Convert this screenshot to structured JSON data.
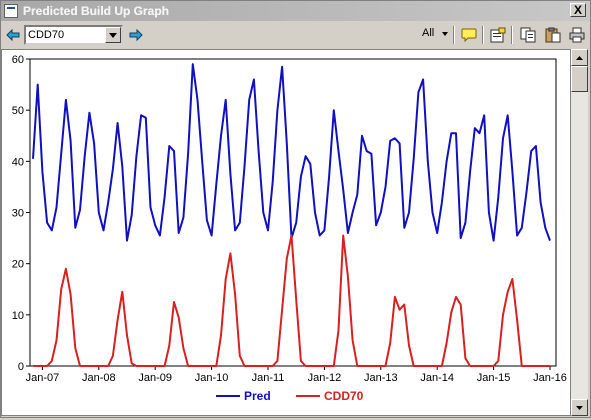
{
  "window": {
    "title": "Predicted Build Up Graph",
    "close_label": "X"
  },
  "toolbar": {
    "series_select": "CDD70",
    "filter_label": "All",
    "icons": [
      "arrow-left-icon",
      "arrow-right-icon",
      "comment-icon",
      "properties-icon",
      "copy-icon",
      "paste-icon",
      "print-icon"
    ]
  },
  "colors": {
    "pred": "#1010c0",
    "cdd70": "#d82020"
  },
  "chart_data": {
    "type": "line",
    "ylim": [
      0,
      60
    ],
    "yticks": [
      "0",
      "10",
      "20",
      "30",
      "40",
      "50",
      "60"
    ],
    "x_tick_labels": [
      "Jan-07",
      "Jan-08",
      "Jan-09",
      "Jan-10",
      "Jan-11",
      "Jan-12",
      "Jan-13",
      "Jan-14",
      "Jan-15",
      "Jan-16"
    ],
    "x_start": "Nov-06",
    "x_end": "Jan-16",
    "series": [
      {
        "name": "Pred",
        "values": [
          40.5,
          55,
          38,
          28,
          26.5,
          31,
          41.5,
          52,
          44,
          27,
          30.5,
          41,
          49.5,
          43.5,
          30,
          26.5,
          32,
          38.5,
          47.5,
          39,
          24.5,
          29.5,
          41,
          49,
          48.5,
          31,
          27.5,
          25.5,
          33,
          43,
          42,
          26,
          29,
          41.5,
          59,
          52,
          40,
          28.5,
          25.5,
          35.5,
          45,
          52,
          37.5,
          26.5,
          28,
          39,
          52,
          56,
          42,
          30,
          26.5,
          36,
          50,
          58.5,
          43.5,
          25,
          28,
          37,
          41,
          39.5,
          30,
          25.5,
          26.5,
          37,
          50,
          42,
          34.5,
          26,
          30,
          33.5,
          45,
          42,
          41.5,
          27.5,
          30,
          35,
          44,
          44.5,
          43.5,
          27,
          30,
          40.5,
          53.5,
          56,
          40,
          30,
          26,
          32,
          40,
          45.5,
          45.5,
          25,
          28,
          38,
          46.5,
          45.5,
          49,
          30,
          24.5,
          33,
          44.5,
          49,
          38,
          25.5,
          27,
          34,
          42,
          43,
          32,
          27,
          24.5
        ]
      },
      {
        "name": "CDD70",
        "values": [
          0,
          0,
          0,
          0,
          1,
          5,
          15,
          19,
          14,
          3.5,
          0,
          0,
          0,
          0,
          0,
          0,
          0,
          2,
          9,
          14.5,
          6,
          0.5,
          0,
          0,
          0,
          0,
          0,
          0,
          0,
          4,
          12.5,
          9.5,
          3.5,
          0,
          0,
          0,
          0,
          0,
          0,
          0,
          6,
          17,
          22,
          14,
          2,
          0,
          0,
          0,
          0,
          0,
          0,
          0,
          1,
          11,
          21,
          25.5,
          13,
          1,
          0,
          0,
          0,
          0,
          0,
          0,
          0,
          7,
          25.5,
          17.5,
          5,
          0,
          0,
          0,
          0,
          0,
          0,
          0,
          4.5,
          13.5,
          11,
          12,
          4,
          0,
          0,
          0,
          0,
          0,
          0,
          0,
          4.5,
          10.5,
          13.5,
          12,
          1.5,
          0,
          0,
          0,
          0,
          0,
          0,
          1,
          10,
          14.5,
          17,
          9,
          0,
          0,
          0,
          0,
          0,
          0,
          0
        ]
      }
    ],
    "legend": [
      "Pred",
      "CDD70"
    ],
    "legend_position": "bottom",
    "grid": false
  }
}
